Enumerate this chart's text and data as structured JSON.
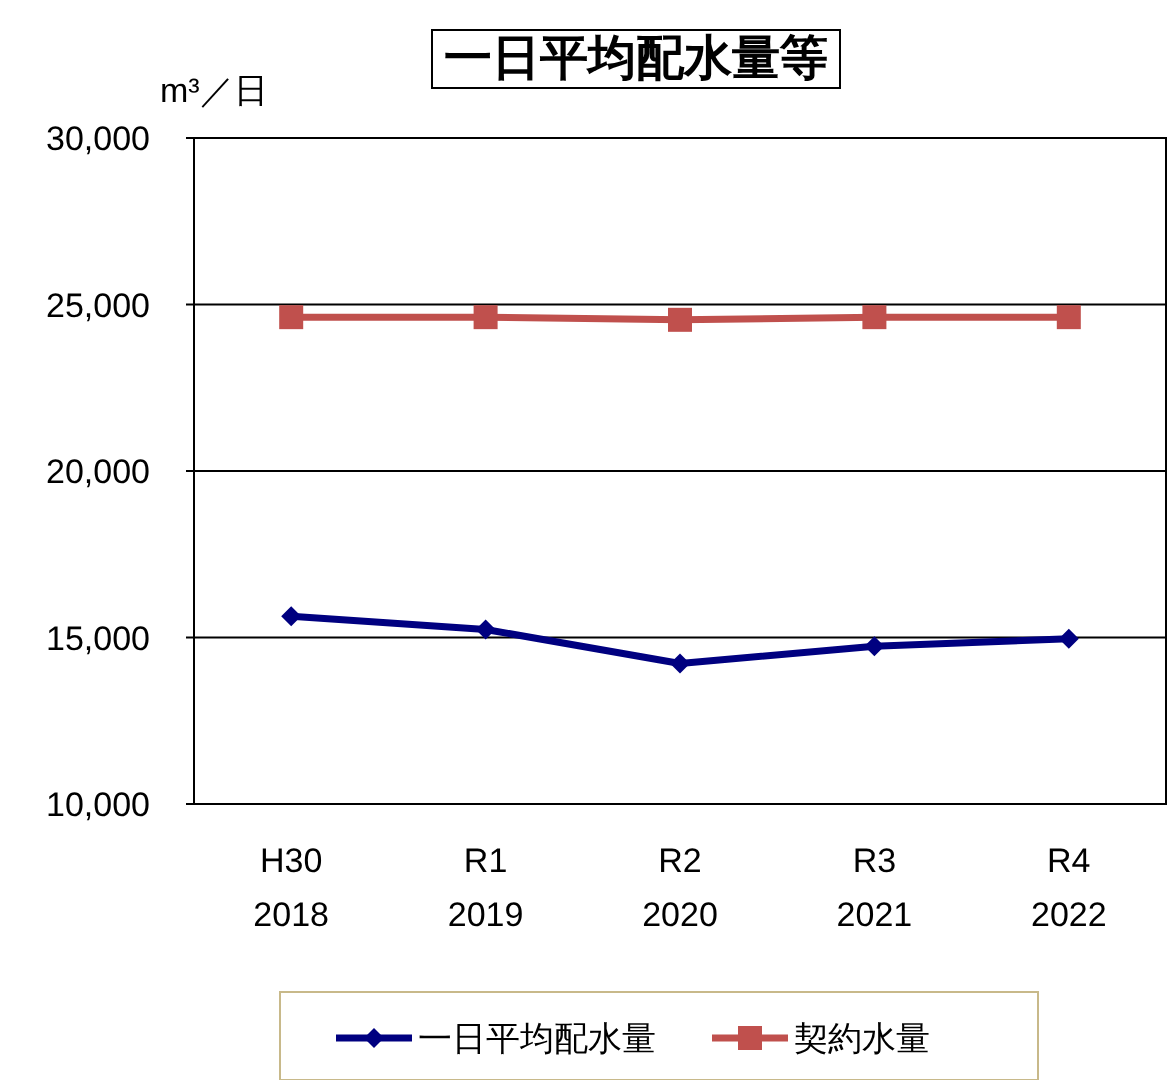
{
  "chart_data": {
    "type": "line",
    "title": "一日平均配水量等",
    "ylabel": "m³／日",
    "categories": [
      "H30\n2018",
      "R1\n2019",
      "R2\n2020",
      "R3\n2021",
      "R4\n2022"
    ],
    "series": [
      {
        "name": "一日平均配水量",
        "color": "#000080",
        "marker": "diamond",
        "values": [
          15640,
          15240,
          14220,
          14740,
          14960
        ]
      },
      {
        "name": "契約水量",
        "color": "#c0504d",
        "marker": "square",
        "values": [
          24620,
          24620,
          24540,
          24620,
          24620
        ]
      }
    ],
    "ylim": [
      10000,
      30000
    ],
    "yticks": [
      {
        "value": 10000,
        "label": "10,000"
      },
      {
        "value": 15000,
        "label": "15,000"
      },
      {
        "value": 20000,
        "label": "20,000"
      },
      {
        "value": 25000,
        "label": "25,000"
      },
      {
        "value": 30000,
        "label": "30,000"
      }
    ],
    "grid": "y",
    "legend": "bottom"
  }
}
